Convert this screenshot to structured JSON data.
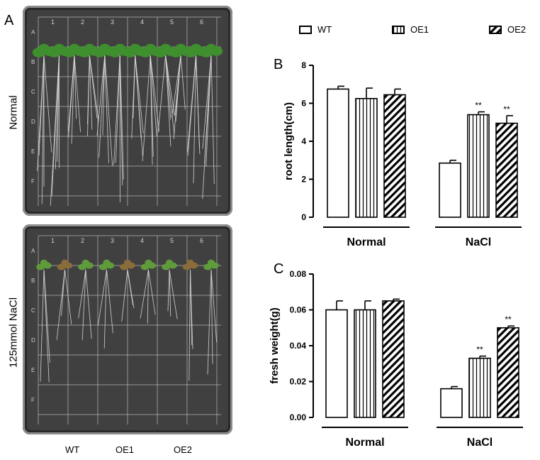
{
  "panels": {
    "a": "A",
    "b": "B",
    "c": "C"
  },
  "photo": {
    "row_labels": [
      "Normal",
      "125mmol  NaCl"
    ],
    "genotypes": [
      "WT",
      "OE1",
      "OE2"
    ],
    "plate_numbers": [
      "1",
      "2",
      "3",
      "4",
      "5",
      "6"
    ],
    "plate_rows": [
      "A",
      "B",
      "C",
      "D",
      "E",
      "F"
    ]
  },
  "legend": [
    {
      "name": "WT",
      "pattern": "open"
    },
    {
      "name": "OE1",
      "pattern": "vertical"
    },
    {
      "name": "OE2",
      "pattern": "diagonal"
    }
  ],
  "colors": {
    "bar_fill": "#ffffff",
    "bar_stroke": "#000000",
    "plate_bg": "#3b3b3b",
    "grid_line": "#d8d8d8",
    "leaf": "#3f8f2e"
  },
  "chart_data": [
    {
      "type": "bar",
      "panel": "B",
      "ylabel": "root length(cm)",
      "xlabel": "",
      "ylim": [
        0,
        8
      ],
      "yticks": [
        "0",
        "2",
        "4",
        "6",
        "8"
      ],
      "groups": [
        "Normal",
        "NaCl"
      ],
      "series": [
        {
          "name": "WT",
          "values": [
            6.75,
            2.85
          ],
          "errors": [
            0.15,
            0.15
          ],
          "sig": [
            "",
            ""
          ]
        },
        {
          "name": "OE1",
          "values": [
            6.25,
            5.4
          ],
          "errors": [
            0.55,
            0.15
          ],
          "sig": [
            "",
            "**"
          ]
        },
        {
          "name": "OE2",
          "values": [
            6.45,
            4.95
          ],
          "errors": [
            0.3,
            0.4
          ],
          "sig": [
            "",
            "**"
          ]
        }
      ]
    },
    {
      "type": "bar",
      "panel": "C",
      "ylabel": "fresh weight(g)",
      "xlabel": "",
      "ylim": [
        0,
        0.08
      ],
      "yticks": [
        "0.00",
        "0.02",
        "0.04",
        "0.06",
        "0.08"
      ],
      "groups": [
        "Normal",
        "NaCl"
      ],
      "series": [
        {
          "name": "WT",
          "values": [
            0.06,
            0.016
          ],
          "errors": [
            0.005,
            0.0012
          ],
          "sig": [
            "",
            ""
          ]
        },
        {
          "name": "OE1",
          "values": [
            0.06,
            0.033
          ],
          "errors": [
            0.005,
            0.0012
          ],
          "sig": [
            "",
            "**"
          ]
        },
        {
          "name": "OE2",
          "values": [
            0.065,
            0.05
          ],
          "errors": [
            0.001,
            0.001
          ],
          "sig": [
            "",
            "**"
          ]
        }
      ]
    }
  ]
}
